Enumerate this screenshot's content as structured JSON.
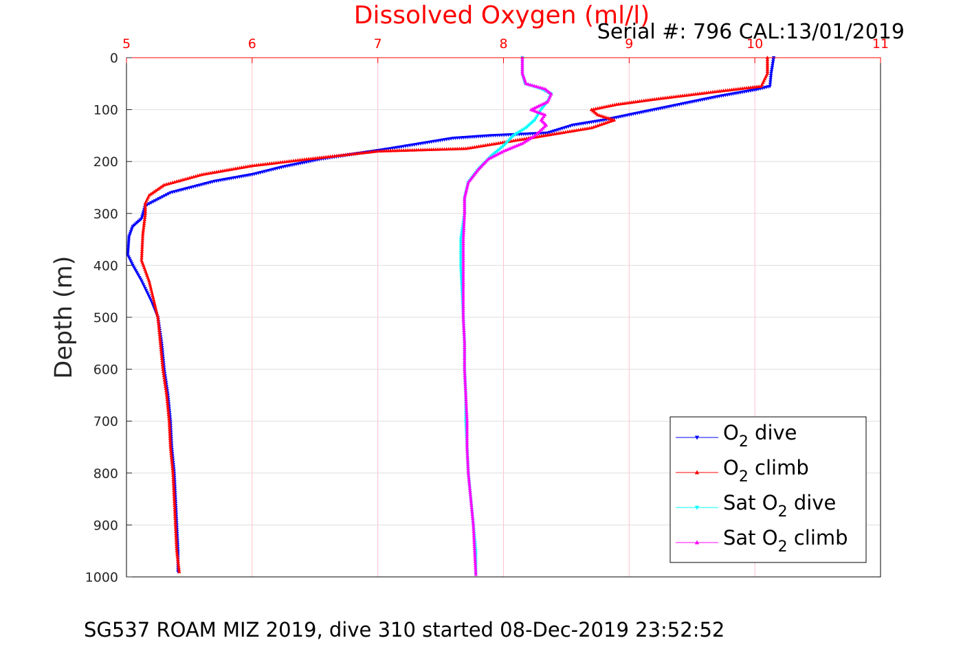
{
  "chart_data": {
    "type": "scatter",
    "title": "Dissolved Oxygen (ml/l)",
    "title_color": "#ff0000",
    "subtitle": "Serial #: 796  CAL:13/01/2019",
    "caption": "SG537 ROAM MIZ 2019, dive 310 started 08-Dec-2019 23:52:52",
    "xlabel": "Dissolved Oxygen (ml/l)",
    "ylabel": "Depth (m)",
    "x_axis_location": "top",
    "xlim": [
      5,
      11
    ],
    "ylim": [
      0,
      1000
    ],
    "y_reversed": true,
    "x_ticks": [
      "5",
      "6",
      "7",
      "8",
      "9",
      "10",
      "11"
    ],
    "y_ticks": [
      "0",
      "100",
      "200",
      "300",
      "400",
      "500",
      "600",
      "700",
      "800",
      "900",
      "1000"
    ],
    "grid": true,
    "x_grid_color": "#ffc0cb",
    "y_grid_color": "#dddddd",
    "legend_position": "bottom-right",
    "legend": [
      {
        "pre": "O",
        "sub": "2",
        "post": " dive",
        "color": "#0000ff",
        "marker": "triangle-down"
      },
      {
        "pre": "O",
        "sub": "2",
        "post": " climb",
        "color": "#ff0000",
        "marker": "triangle-up"
      },
      {
        "pre": "Sat O",
        "sub": "2",
        "post": " dive",
        "color": "#00ffff",
        "marker": "triangle-down"
      },
      {
        "pre": "Sat O",
        "sub": "2",
        "post": " climb",
        "color": "#ff00ff",
        "marker": "triangle-up"
      }
    ],
    "series": [
      {
        "color": "#0000ff",
        "marker": "triangle-down",
        "points": [
          [
            10.15,
            0
          ],
          [
            10.13,
            30
          ],
          [
            10.12,
            55
          ],
          [
            10.0,
            62
          ],
          [
            9.7,
            75
          ],
          [
            9.3,
            95
          ],
          [
            8.8,
            120
          ],
          [
            8.55,
            130
          ],
          [
            8.35,
            145
          ],
          [
            7.9,
            150
          ],
          [
            7.6,
            155
          ],
          [
            7.1,
            175
          ],
          [
            6.55,
            195
          ],
          [
            6.25,
            210
          ],
          [
            6.0,
            225
          ],
          [
            5.7,
            238
          ],
          [
            5.35,
            260
          ],
          [
            5.15,
            285
          ],
          [
            5.12,
            310
          ],
          [
            5.05,
            325
          ],
          [
            5.02,
            345
          ],
          [
            5.01,
            380
          ],
          [
            5.05,
            400
          ],
          [
            5.12,
            430
          ],
          [
            5.2,
            470
          ],
          [
            5.25,
            500
          ],
          [
            5.28,
            550
          ],
          [
            5.3,
            600
          ],
          [
            5.33,
            650
          ],
          [
            5.35,
            700
          ],
          [
            5.36,
            750
          ],
          [
            5.38,
            800
          ],
          [
            5.39,
            850
          ],
          [
            5.4,
            900
          ],
          [
            5.41,
            950
          ],
          [
            5.41,
            990
          ]
        ]
      },
      {
        "color": "#ff0000",
        "marker": "triangle-up",
        "points": [
          [
            10.1,
            0
          ],
          [
            10.1,
            30
          ],
          [
            10.05,
            55
          ],
          [
            9.7,
            65
          ],
          [
            9.2,
            80
          ],
          [
            8.9,
            90
          ],
          [
            8.7,
            100
          ],
          [
            8.75,
            110
          ],
          [
            8.88,
            120
          ],
          [
            8.7,
            135
          ],
          [
            8.2,
            155
          ],
          [
            7.7,
            175
          ],
          [
            7.0,
            180
          ],
          [
            6.45,
            195
          ],
          [
            6.0,
            208
          ],
          [
            5.6,
            225
          ],
          [
            5.3,
            245
          ],
          [
            5.18,
            265
          ],
          [
            5.15,
            280
          ],
          [
            5.15,
            300
          ],
          [
            5.13,
            340
          ],
          [
            5.12,
            390
          ],
          [
            5.18,
            430
          ],
          [
            5.22,
            470
          ],
          [
            5.25,
            500
          ],
          [
            5.27,
            550
          ],
          [
            5.29,
            600
          ],
          [
            5.32,
            650
          ],
          [
            5.34,
            700
          ],
          [
            5.35,
            750
          ],
          [
            5.37,
            800
          ],
          [
            5.38,
            850
          ],
          [
            5.39,
            900
          ],
          [
            5.4,
            950
          ],
          [
            5.42,
            990
          ]
        ]
      },
      {
        "color": "#00ffff",
        "marker": "triangle-down",
        "points": [
          [
            8.15,
            0
          ],
          [
            8.15,
            30
          ],
          [
            8.17,
            50
          ],
          [
            8.3,
            60
          ],
          [
            8.38,
            70
          ],
          [
            8.35,
            85
          ],
          [
            8.3,
            100
          ],
          [
            8.25,
            120
          ],
          [
            8.18,
            135
          ],
          [
            8.08,
            150
          ],
          [
            8.0,
            170
          ],
          [
            7.9,
            190
          ],
          [
            7.8,
            215
          ],
          [
            7.72,
            240
          ],
          [
            7.69,
            270
          ],
          [
            7.69,
            300
          ],
          [
            7.66,
            350
          ],
          [
            7.66,
            400
          ],
          [
            7.67,
            450
          ],
          [
            7.68,
            500
          ],
          [
            7.69,
            550
          ],
          [
            7.69,
            600
          ],
          [
            7.7,
            650
          ],
          [
            7.7,
            700
          ],
          [
            7.71,
            750
          ],
          [
            7.72,
            800
          ],
          [
            7.74,
            850
          ],
          [
            7.76,
            900
          ],
          [
            7.78,
            950
          ],
          [
            7.78,
            995
          ]
        ]
      },
      {
        "color": "#ff00ff",
        "marker": "triangle-up",
        "points": [
          [
            8.15,
            0
          ],
          [
            8.15,
            30
          ],
          [
            8.18,
            50
          ],
          [
            8.33,
            60
          ],
          [
            8.38,
            70
          ],
          [
            8.35,
            85
          ],
          [
            8.22,
            100
          ],
          [
            8.33,
            110
          ],
          [
            8.3,
            120
          ],
          [
            8.34,
            130
          ],
          [
            8.25,
            150
          ],
          [
            8.15,
            165
          ],
          [
            8.0,
            180
          ],
          [
            7.88,
            195
          ],
          [
            7.8,
            215
          ],
          [
            7.72,
            240
          ],
          [
            7.69,
            270
          ],
          [
            7.69,
            300
          ],
          [
            7.68,
            350
          ],
          [
            7.68,
            400
          ],
          [
            7.68,
            450
          ],
          [
            7.68,
            500
          ],
          [
            7.69,
            550
          ],
          [
            7.69,
            600
          ],
          [
            7.7,
            650
          ],
          [
            7.71,
            700
          ],
          [
            7.71,
            750
          ],
          [
            7.72,
            800
          ],
          [
            7.74,
            850
          ],
          [
            7.76,
            900
          ],
          [
            7.77,
            950
          ],
          [
            7.78,
            995
          ]
        ]
      }
    ]
  }
}
